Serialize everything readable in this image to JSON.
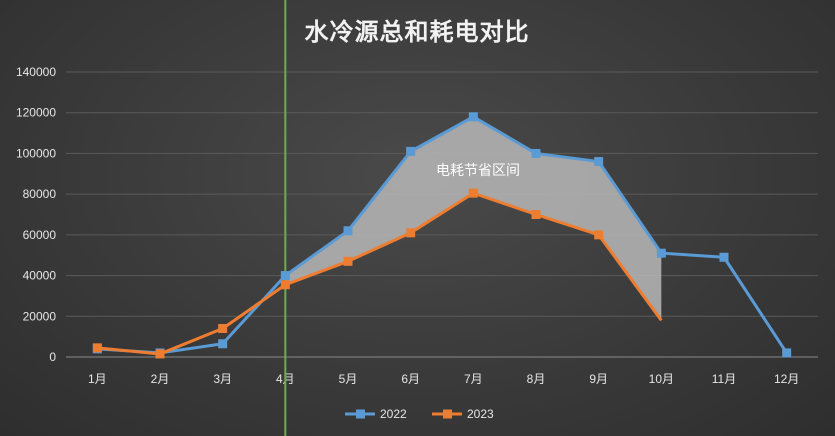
{
  "chart_data": {
    "type": "line",
    "title": "水冷源总和耗电对比",
    "categories": [
      "1月",
      "2月",
      "3月",
      "4月",
      "5月",
      "6月",
      "7月",
      "8月",
      "9月",
      "10月",
      "11月",
      "12月"
    ],
    "ylim": [
      0,
      140000
    ],
    "yticks": [
      "0",
      "20000",
      "40000",
      "60000",
      "80000",
      "100000",
      "120000",
      "140000"
    ],
    "series": [
      {
        "name": "2022",
        "color": "#5b9bd5",
        "values": [
          4000,
          2000,
          6500,
          40000,
          62000,
          101000,
          118000,
          100000,
          96000,
          51000,
          49000,
          2000
        ]
      },
      {
        "name": "2023",
        "color": "#ed7d31",
        "values": [
          4500,
          1500,
          14000,
          35500,
          47000,
          61000,
          80500,
          70000,
          60000,
          18000,
          null,
          null
        ]
      }
    ],
    "annotation": "电耗节省区间",
    "marker_line_category": "4月",
    "legend_position": "bottom",
    "grid": true
  }
}
